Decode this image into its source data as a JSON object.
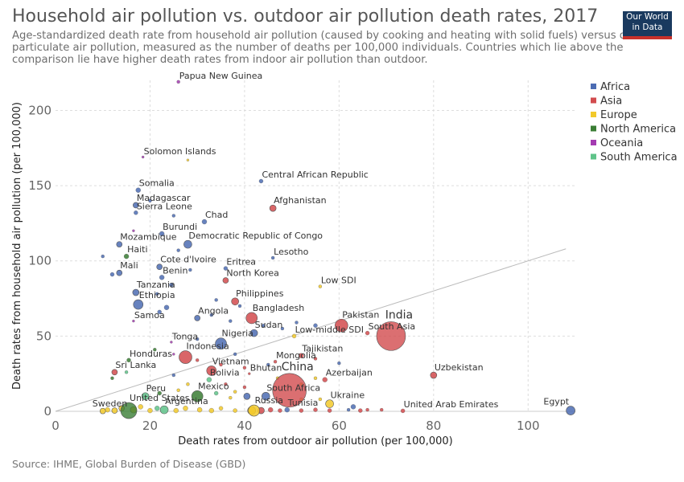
{
  "header": {
    "title": "Household air pollution vs. outdoor air pollution death rates, 2017",
    "subtitle": "Age-standardized death rate from household air pollution (caused by cooking and heating with solid fuels) versus outdoor particulate air pollution, measured as the number of deaths per 100,000 individuals. Countries which lie above the comparison lie have higher death rates from indoor air pollution than outdoor.",
    "logo_line1": "Our World",
    "logo_line2": "in Data"
  },
  "footer": {
    "source": "Source: IHME, Global Burden of Disease (GBD)"
  },
  "chart_data": {
    "type": "scatter",
    "title": "Household air pollution vs. outdoor air pollution death rates, 2017",
    "xlabel": "Death rates from outdoor air pollution (per 100,000)",
    "ylabel": "Death rates from household air pollution (per 100,000)",
    "xlim": [
      0,
      110
    ],
    "ylim": [
      0,
      220
    ],
    "x_ticks": [
      0,
      20,
      40,
      60,
      80,
      100
    ],
    "y_ticks": [
      0,
      50,
      100,
      150,
      200
    ],
    "grid": true,
    "reference_line": "y = x",
    "legend_position": "right",
    "regions": [
      {
        "name": "Africa",
        "color": "#4c6cb3"
      },
      {
        "name": "Asia",
        "color": "#d24b4e"
      },
      {
        "name": "Europe",
        "color": "#f2c92a"
      },
      {
        "name": "North America",
        "color": "#3a7d34"
      },
      {
        "name": "Oceania",
        "color": "#a43bb1"
      },
      {
        "name": "South America",
        "color": "#5fc389"
      }
    ],
    "points": [
      {
        "label": "Papua New Guinea",
        "x": 26,
        "y": 219,
        "region": "Oceania",
        "size": 2
      },
      {
        "label": "Solomon Islands",
        "x": 18.5,
        "y": 169,
        "region": "Oceania",
        "size": 1.5
      },
      {
        "label": "Central African Republic",
        "x": 43.5,
        "y": 153,
        "region": "Africa",
        "size": 2.5
      },
      {
        "label": "Somalia",
        "x": 17.5,
        "y": 147,
        "region": "Africa",
        "size": 3
      },
      {
        "label": "Afghanistan",
        "x": 46,
        "y": 135,
        "region": "Asia",
        "size": 4
      },
      {
        "label": "Madagascar",
        "x": 17,
        "y": 137,
        "region": "Africa",
        "size": 3.5
      },
      {
        "label": "Sierra Leone",
        "x": 17,
        "y": 132,
        "region": "Africa",
        "size": 2.5
      },
      {
        "label": "Chad",
        "x": 31.5,
        "y": 126,
        "region": "Africa",
        "size": 3
      },
      {
        "label": "Burundi",
        "x": 22.5,
        "y": 118,
        "region": "Africa",
        "size": 3
      },
      {
        "label": "Democratic Republic of Congo",
        "x": 28,
        "y": 111,
        "region": "Africa",
        "size": 5
      },
      {
        "label": "Mozambique",
        "x": 13.5,
        "y": 111,
        "region": "Africa",
        "size": 3.5
      },
      {
        "label": "Haiti",
        "x": 15,
        "y": 103,
        "region": "North America",
        "size": 3
      },
      {
        "label": "Lesotho",
        "x": 46,
        "y": 102,
        "region": "Africa",
        "size": 2
      },
      {
        "label": "Cote d'Ivoire",
        "x": 22,
        "y": 96,
        "region": "Africa",
        "size": 3.5
      },
      {
        "label": "Eritrea",
        "x": 36,
        "y": 95,
        "region": "Africa",
        "size": 2.5
      },
      {
        "label": "Mali",
        "x": 13.5,
        "y": 92,
        "region": "Africa",
        "size": 3.5
      },
      {
        "label": "Benin",
        "x": 22.5,
        "y": 89,
        "region": "Africa",
        "size": 3
      },
      {
        "label": "North Korea",
        "x": 36,
        "y": 87,
        "region": "Asia",
        "size": 3.5
      },
      {
        "label": "Low SDI",
        "x": 56,
        "y": 83,
        "region": "Europe",
        "size": 2
      },
      {
        "label": "Tanzania",
        "x": 17,
        "y": 79,
        "region": "Africa",
        "size": 4
      },
      {
        "label": "Philippines",
        "x": 38,
        "y": 73,
        "region": "Asia",
        "size": 4.5
      },
      {
        "label": "Ethiopia",
        "x": 17.5,
        "y": 71,
        "region": "Africa",
        "size": 6
      },
      {
        "label": "Bangladesh",
        "x": 41.5,
        "y": 62,
        "region": "Asia",
        "size": 7
      },
      {
        "label": "Samoa",
        "x": 16.5,
        "y": 60,
        "region": "Oceania",
        "size": 1.5
      },
      {
        "label": "Angola",
        "x": 30,
        "y": 62,
        "region": "Africa",
        "size": 3.5
      },
      {
        "label": "Pakistan",
        "x": 60.5,
        "y": 57,
        "region": "Asia",
        "size": 8
      },
      {
        "label": "India",
        "x": 71,
        "y": 50,
        "region": "Asia",
        "size": 18
      },
      {
        "label": "South Asia",
        "x": 66,
        "y": 52,
        "region": "Asia",
        "size": 2.5
      },
      {
        "label": "Sudan",
        "x": 42,
        "y": 52,
        "region": "Africa",
        "size": 4.5
      },
      {
        "label": "Low-middle SDI",
        "x": 50.5,
        "y": 50,
        "region": "Europe",
        "size": 2.5
      },
      {
        "label": "Nigeria",
        "x": 35,
        "y": 45,
        "region": "Africa",
        "size": 7
      },
      {
        "label": "Tonga",
        "x": 24.5,
        "y": 46,
        "region": "Oceania",
        "size": 1.5
      },
      {
        "label": "Indonesia",
        "x": 27.5,
        "y": 36,
        "region": "Asia",
        "size": 8
      },
      {
        "label": "Tajikistan",
        "x": 52,
        "y": 37,
        "region": "Asia",
        "size": 3
      },
      {
        "label": "Honduras",
        "x": 15.5,
        "y": 34,
        "region": "North America",
        "size": 2.5
      },
      {
        "label": "Mongolia",
        "x": 46.5,
        "y": 33,
        "region": "Asia",
        "size": 2
      },
      {
        "label": "Sri Lanka",
        "x": 12.5,
        "y": 26,
        "region": "Asia",
        "size": 3.5
      },
      {
        "label": "Vietnam",
        "x": 33,
        "y": 27,
        "region": "Asia",
        "size": 6
      },
      {
        "label": "Bolivia",
        "x": 32.5,
        "y": 21,
        "region": "South America",
        "size": 3
      },
      {
        "label": "Bhutan",
        "x": 41,
        "y": 25,
        "region": "Asia",
        "size": 1.5
      },
      {
        "label": "China",
        "x": 49.5,
        "y": 14,
        "region": "Asia",
        "size": 21
      },
      {
        "label": "Azerbaijan",
        "x": 57,
        "y": 21,
        "region": "Asia",
        "size": 3
      },
      {
        "label": "Uzbekistan",
        "x": 80,
        "y": 24,
        "region": "Asia",
        "size": 4
      },
      {
        "label": "Peru",
        "x": 19,
        "y": 10,
        "region": "South America",
        "size": 4.5
      },
      {
        "label": "Mexico",
        "x": 30,
        "y": 10,
        "region": "North America",
        "size": 7
      },
      {
        "label": "South Africa",
        "x": 44.5,
        "y": 10,
        "region": "Africa",
        "size": 5
      },
      {
        "label": "Ukraine",
        "x": 58,
        "y": 5,
        "region": "Europe",
        "size": 5
      },
      {
        "label": "United States",
        "x": 15.5,
        "y": 0.5,
        "region": "North America",
        "size": 10
      },
      {
        "label": "Argentina",
        "x": 23,
        "y": 1,
        "region": "South America",
        "size": 5
      },
      {
        "label": "Russia",
        "x": 42,
        "y": 0.5,
        "region": "Europe",
        "size": 7
      },
      {
        "label": "Tunisia",
        "x": 49,
        "y": 1,
        "region": "Africa",
        "size": 3
      },
      {
        "label": "United Arab Emirates",
        "x": 73.5,
        "y": 0.3,
        "region": "Asia",
        "size": 2.5
      },
      {
        "label": "Egypt",
        "x": 109,
        "y": 0.5,
        "region": "Africa",
        "size": 5.5
      },
      {
        "label": "Sweden",
        "x": 10,
        "y": 0.2,
        "region": "Europe",
        "size": 3.5
      }
    ],
    "unlabeled_points": [
      {
        "x": 10,
        "y": 103,
        "region": "Africa",
        "size": 2
      },
      {
        "x": 12,
        "y": 91,
        "region": "Africa",
        "size": 2.5
      },
      {
        "x": 16.5,
        "y": 120,
        "region": "Oceania",
        "size": 1.5
      },
      {
        "x": 20,
        "y": 140,
        "region": "Africa",
        "size": 2
      },
      {
        "x": 25,
        "y": 130,
        "region": "Africa",
        "size": 2
      },
      {
        "x": 26,
        "y": 107,
        "region": "Africa",
        "size": 2
      },
      {
        "x": 28.5,
        "y": 94,
        "region": "Africa",
        "size": 2
      },
      {
        "x": 28,
        "y": 167,
        "region": "Europe",
        "size": 1.5
      },
      {
        "x": 24.5,
        "y": 84,
        "region": "Africa",
        "size": 2.5
      },
      {
        "x": 22,
        "y": 66,
        "region": "Africa",
        "size": 2.5
      },
      {
        "x": 23.5,
        "y": 69,
        "region": "Africa",
        "size": 3
      },
      {
        "x": 21.5,
        "y": 78,
        "region": "Africa",
        "size": 2
      },
      {
        "x": 34,
        "y": 74,
        "region": "Africa",
        "size": 2
      },
      {
        "x": 39,
        "y": 70,
        "region": "Africa",
        "size": 2
      },
      {
        "x": 33,
        "y": 64,
        "region": "Africa",
        "size": 2
      },
      {
        "x": 37,
        "y": 60,
        "region": "Africa",
        "size": 2
      },
      {
        "x": 44,
        "y": 57,
        "region": "Africa",
        "size": 2
      },
      {
        "x": 48,
        "y": 55,
        "region": "Africa",
        "size": 2
      },
      {
        "x": 51,
        "y": 59,
        "region": "Africa",
        "size": 2
      },
      {
        "x": 55,
        "y": 57,
        "region": "Africa",
        "size": 2.5
      },
      {
        "x": 30,
        "y": 48,
        "region": "Africa",
        "size": 2
      },
      {
        "x": 38,
        "y": 38,
        "region": "Africa",
        "size": 2
      },
      {
        "x": 21,
        "y": 41,
        "region": "North America",
        "size": 2
      },
      {
        "x": 25,
        "y": 38,
        "region": "Oceania",
        "size": 1.5
      },
      {
        "x": 30,
        "y": 34,
        "region": "Asia",
        "size": 2
      },
      {
        "x": 35,
        "y": 31,
        "region": "Asia",
        "size": 2
      },
      {
        "x": 40,
        "y": 29,
        "region": "Asia",
        "size": 2
      },
      {
        "x": 45,
        "y": 31,
        "region": "Africa",
        "size": 2
      },
      {
        "x": 55,
        "y": 35,
        "region": "Asia",
        "size": 2
      },
      {
        "x": 60,
        "y": 32,
        "region": "Africa",
        "size": 2
      },
      {
        "x": 12,
        "y": 22,
        "region": "North America",
        "size": 2
      },
      {
        "x": 15,
        "y": 26,
        "region": "South America",
        "size": 2
      },
      {
        "x": 25,
        "y": 24,
        "region": "Africa",
        "size": 2
      },
      {
        "x": 28,
        "y": 18,
        "region": "Europe",
        "size": 2
      },
      {
        "x": 36,
        "y": 18,
        "region": "Asia",
        "size": 2
      },
      {
        "x": 40,
        "y": 16,
        "region": "Asia",
        "size": 2
      },
      {
        "x": 47,
        "y": 22,
        "region": "Europe",
        "size": 2
      },
      {
        "x": 52,
        "y": 18,
        "region": "Europe",
        "size": 2
      },
      {
        "x": 55,
        "y": 22,
        "region": "Europe",
        "size": 2
      },
      {
        "x": 22,
        "y": 12,
        "region": "North America",
        "size": 2.5
      },
      {
        "x": 26,
        "y": 14,
        "region": "Europe",
        "size": 2
      },
      {
        "x": 34,
        "y": 12,
        "region": "South America",
        "size": 2.5
      },
      {
        "x": 37,
        "y": 9,
        "region": "Europe",
        "size": 2
      },
      {
        "x": 38,
        "y": 13,
        "region": "Europe",
        "size": 2
      },
      {
        "x": 40.5,
        "y": 10,
        "region": "Africa",
        "size": 4
      },
      {
        "x": 52,
        "y": 8,
        "region": "Europe",
        "size": 2
      },
      {
        "x": 56,
        "y": 8,
        "region": "Europe",
        "size": 2
      },
      {
        "x": 62,
        "y": 1,
        "region": "Africa",
        "size": 2
      },
      {
        "x": 63,
        "y": 3,
        "region": "Africa",
        "size": 3
      },
      {
        "x": 66,
        "y": 1,
        "region": "Asia",
        "size": 2
      },
      {
        "x": 69,
        "y": 1,
        "region": "Asia",
        "size": 2
      },
      {
        "x": 11,
        "y": 1,
        "region": "Europe",
        "size": 3
      },
      {
        "x": 12.5,
        "y": 0.5,
        "region": "Europe",
        "size": 3.5
      },
      {
        "x": 14,
        "y": 2,
        "region": "Europe",
        "size": 3.5
      },
      {
        "x": 16.5,
        "y": 1,
        "region": "Europe",
        "size": 4
      },
      {
        "x": 18,
        "y": 3,
        "region": "Europe",
        "size": 3
      },
      {
        "x": 20,
        "y": 0.5,
        "region": "Europe",
        "size": 3
      },
      {
        "x": 21.5,
        "y": 2,
        "region": "South America",
        "size": 3
      },
      {
        "x": 25.5,
        "y": 0.5,
        "region": "Europe",
        "size": 3
      },
      {
        "x": 27.5,
        "y": 2,
        "region": "Europe",
        "size": 3
      },
      {
        "x": 30.5,
        "y": 1,
        "region": "Europe",
        "size": 3
      },
      {
        "x": 33,
        "y": 0.5,
        "region": "Europe",
        "size": 3
      },
      {
        "x": 35,
        "y": 2,
        "region": "Europe",
        "size": 2.5
      },
      {
        "x": 38,
        "y": 0.5,
        "region": "Europe",
        "size": 2.5
      },
      {
        "x": 41.5,
        "y": 0.5,
        "region": "Europe",
        "size": 5
      },
      {
        "x": 43.5,
        "y": 0.5,
        "region": "Asia",
        "size": 4
      },
      {
        "x": 45.5,
        "y": 1,
        "region": "Asia",
        "size": 3
      },
      {
        "x": 47.5,
        "y": 0.5,
        "region": "Asia",
        "size": 2.5
      },
      {
        "x": 52,
        "y": 0.5,
        "region": "Asia",
        "size": 2.5
      },
      {
        "x": 55,
        "y": 1,
        "region": "Asia",
        "size": 2.5
      },
      {
        "x": 58,
        "y": 0.5,
        "region": "Asia",
        "size": 2.5
      },
      {
        "x": 64.5,
        "y": 0.5,
        "region": "Asia",
        "size": 2.5
      }
    ]
  }
}
